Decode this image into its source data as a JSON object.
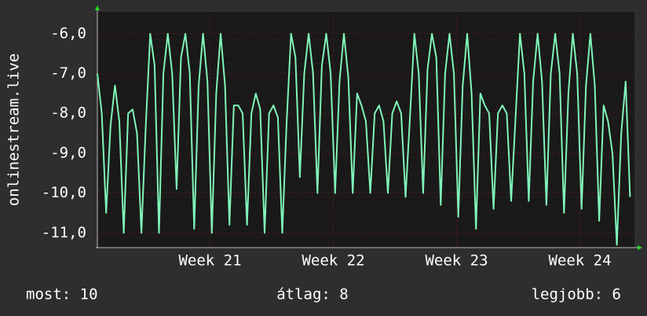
{
  "chart_data": {
    "type": "line",
    "ylabel": "onlinestream.live",
    "color": "#7ff5b8",
    "grid": true,
    "xlim": [
      0,
      30.5
    ],
    "xticks": [
      {
        "value": 6.4,
        "label": "Week 21"
      },
      {
        "value": 13.4,
        "label": "Week 22"
      },
      {
        "value": 20.4,
        "label": "Week 23"
      },
      {
        "value": 27.4,
        "label": "Week 24"
      }
    ],
    "ylim": [
      -11.37,
      -5.45
    ],
    "yticks": [
      {
        "value": -11,
        "label": "-11,0"
      },
      {
        "value": -10,
        "label": "-10,0"
      },
      {
        "value": -9,
        "label": "-9,0"
      },
      {
        "value": -8,
        "label": "-8,0"
      },
      {
        "value": -7,
        "label": "-7,0"
      },
      {
        "value": -6,
        "label": "-6,0"
      }
    ],
    "x": [
      0,
      0.25,
      0.5,
      0.75,
      1,
      1.25,
      1.5,
      1.75,
      2,
      2.25,
      2.5,
      2.75,
      3,
      3.25,
      3.5,
      3.75,
      4,
      4.25,
      4.5,
      4.75,
      5,
      5.25,
      5.5,
      5.75,
      6,
      6.25,
      6.5,
      6.75,
      7,
      7.25,
      7.5,
      7.75,
      8,
      8.25,
      8.5,
      8.75,
      9,
      9.25,
      9.5,
      9.75,
      10,
      10.25,
      10.5,
      10.75,
      11,
      11.25,
      11.5,
      11.75,
      12,
      12.25,
      12.5,
      12.75,
      13,
      13.25,
      13.5,
      13.75,
      14,
      14.25,
      14.5,
      14.75,
      15,
      15.25,
      15.5,
      15.75,
      16,
      16.25,
      16.5,
      16.75,
      17,
      17.25,
      17.5,
      17.75,
      18,
      18.25,
      18.5,
      18.75,
      19,
      19.25,
      19.5,
      19.75,
      20,
      20.25,
      20.5,
      20.75,
      21,
      21.25,
      21.5,
      21.75,
      22,
      22.25,
      22.5,
      22.75,
      23,
      23.25,
      23.5,
      23.75,
      24,
      24.25,
      24.5,
      24.75,
      25,
      25.25,
      25.5,
      25.75,
      26,
      26.25,
      26.5,
      26.75,
      27,
      27.25,
      27.5,
      27.75,
      28,
      28.25,
      28.5,
      28.75,
      29,
      29.25,
      29.5,
      29.75,
      30,
      30.25
    ],
    "values": [
      -7.0,
      -8.0,
      -10.5,
      -8.3,
      -7.3,
      -8.2,
      -11.0,
      -8.0,
      -7.9,
      -8.5,
      -11.0,
      -8.3,
      -6.0,
      -6.8,
      -11.0,
      -7.0,
      -6.0,
      -7.0,
      -9.9,
      -6.6,
      -6.0,
      -7.0,
      -10.9,
      -7.3,
      -6.0,
      -7.2,
      -11.0,
      -7.5,
      -6.0,
      -7.3,
      -10.8,
      -7.8,
      -7.8,
      -8.0,
      -10.8,
      -8.0,
      -7.5,
      -7.9,
      -11.0,
      -8.0,
      -7.8,
      -8.1,
      -11.0,
      -8.2,
      -6.0,
      -6.6,
      -9.6,
      -7.0,
      -6.0,
      -7.0,
      -10.0,
      -6.8,
      -6.0,
      -7.0,
      -10.0,
      -7.2,
      -6.0,
      -7.1,
      -10.0,
      -7.5,
      -7.8,
      -8.2,
      -10.0,
      -8.0,
      -7.8,
      -8.2,
      -10.0,
      -8.0,
      -7.7,
      -8.0,
      -10.1,
      -8.1,
      -6.0,
      -7.0,
      -10.0,
      -6.9,
      -6.0,
      -6.6,
      -10.3,
      -7.0,
      -6.0,
      -7.0,
      -10.6,
      -7.3,
      -6.0,
      -7.5,
      -10.9,
      -7.5,
      -7.8,
      -8.0,
      -10.4,
      -8.0,
      -7.8,
      -8.0,
      -10.2,
      -8.1,
      -6.0,
      -7.0,
      -10.2,
      -7.2,
      -6.0,
      -7.2,
      -10.3,
      -7.0,
      -6.0,
      -7.0,
      -10.5,
      -7.5,
      -6.0,
      -7.0,
      -10.4,
      -7.3,
      -6.0,
      -7.3,
      -10.7,
      -7.8,
      -8.2,
      -9.0,
      -11.3,
      -8.5,
      -7.2,
      -10.1
    ],
    "stats": [
      "most: 10",
      "átlag: 8",
      "legjobb: 6"
    ]
  }
}
